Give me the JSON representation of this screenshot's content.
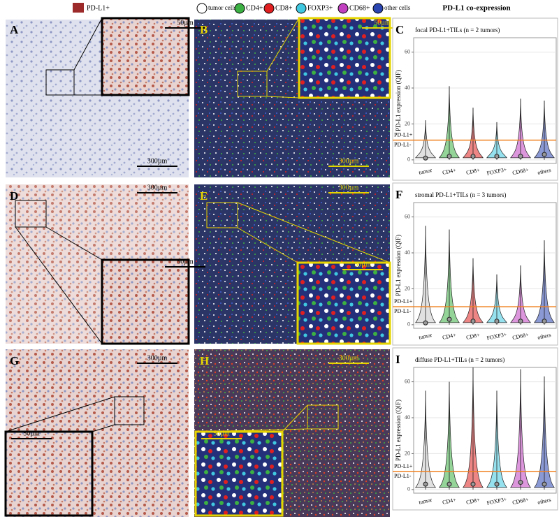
{
  "figure_legend": {
    "ihc": {
      "label": "PD-L1+",
      "color": "#9c2a2a"
    },
    "qif": [
      {
        "label": "tumor cells",
        "color": "#ffffff"
      },
      {
        "label": "CD4+",
        "color": "#3cb043"
      },
      {
        "label": "CD8+",
        "color": "#e02020"
      },
      {
        "label": "FOXP3+",
        "color": "#40c8e0"
      },
      {
        "label": "CD68+",
        "color": "#c040c0"
      },
      {
        "label": "other cells",
        "color": "#2a44b0"
      }
    ]
  },
  "column_title": "PD-L1 co-expression",
  "panels": [
    {
      "letter": "A",
      "scale_bars": [
        "50µm",
        "300µm"
      ]
    },
    {
      "letter": "B",
      "scale_bars": [
        "50µm",
        "300µm"
      ]
    },
    {
      "letter": "D",
      "scale_bars": [
        "300µm",
        "50µm"
      ]
    },
    {
      "letter": "E",
      "scale_bars": [
        "300µm",
        "50µm"
      ]
    },
    {
      "letter": "G",
      "scale_bars": [
        "300µm",
        "50µm"
      ]
    },
    {
      "letter": "H",
      "scale_bars": [
        "300µm",
        "50µm"
      ]
    }
  ],
  "chart_data": [
    {
      "type": "violin",
      "letter": "C",
      "subtitle": "focal PD-L1+TILs (n = 2 tumors)",
      "y_label": "PD-L1 expression (QIF)",
      "categories": [
        "tumor",
        "CD4+",
        "CD8+",
        "FOXP3+",
        "CD68+",
        "others"
      ],
      "colors": [
        "#c8c8c8",
        "#3cb043",
        "#e02020",
        "#40c8e0",
        "#c040c0",
        "#2a44b0"
      ],
      "max": [
        22,
        41,
        29,
        21,
        34,
        33
      ],
      "medians": [
        1,
        2,
        2,
        2,
        2,
        3
      ],
      "threshold": {
        "value": 11,
        "labels": [
          "PD-L1+",
          "PD-L1-"
        ],
        "color": "#f08020"
      },
      "ylim": [
        -2,
        68
      ],
      "yticks": [
        0,
        20,
        40,
        60
      ],
      "grid": true
    },
    {
      "type": "violin",
      "letter": "F",
      "subtitle": "stromal PD-L1+TILs (n = 3 tumors)",
      "y_label": "PD-L1 expression (QIF)",
      "categories": [
        "tumor",
        "CD4+",
        "CD8+",
        "FOXP3+",
        "CD68+",
        "others"
      ],
      "colors": [
        "#c8c8c8",
        "#3cb043",
        "#e02020",
        "#40c8e0",
        "#c040c0",
        "#2a44b0"
      ],
      "max": [
        55,
        53,
        37,
        28,
        33,
        47
      ],
      "medians": [
        1,
        3,
        2,
        2,
        2,
        2
      ],
      "threshold": {
        "value": 10,
        "labels": [
          "PD-L1+",
          "PD-L1-"
        ],
        "color": "#f08020"
      },
      "ylim": [
        -2,
        68
      ],
      "yticks": [
        0,
        20,
        40,
        60
      ],
      "grid": true
    },
    {
      "type": "violin",
      "letter": "I",
      "subtitle": "diffuse PD-L1+TILs (n = 2 tumors)",
      "y_label": "PD-L1 expression (QIF)",
      "categories": [
        "tumor",
        "CD4+",
        "CD8+",
        "FOXP3+",
        "CD68+",
        "others"
      ],
      "colors": [
        "#c8c8c8",
        "#3cb043",
        "#e02020",
        "#40c8e0",
        "#c040c0",
        "#2a44b0"
      ],
      "max": [
        55,
        60,
        68,
        55,
        67,
        63
      ],
      "medians": [
        3,
        3,
        3,
        3,
        4,
        3
      ],
      "threshold": {
        "value": 10,
        "labels": [
          "PD-L1+",
          "PD-L1-"
        ],
        "color": "#f08020"
      },
      "ylim": [
        -2,
        68
      ],
      "yticks": [
        0,
        20,
        40,
        60
      ],
      "grid": true
    }
  ]
}
